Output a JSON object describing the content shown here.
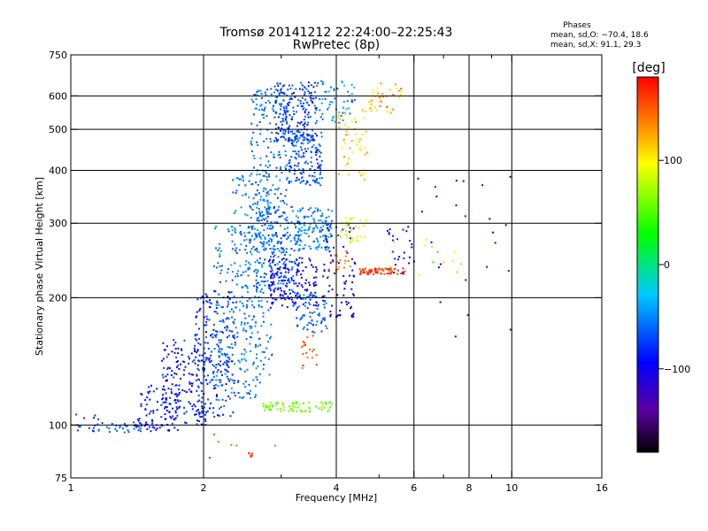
{
  "chart_data": {
    "type": "scatter",
    "title": "Tromsø 20141212 22:24:00–22:25:43",
    "subtitle": "RwPretec (8p)",
    "xlabel": "Frequency [MHz]",
    "ylabel": "Stationary phase Virtual Height [km]",
    "x_scale": "log",
    "y_scale": "log",
    "xlim": [
      1,
      16
    ],
    "ylim": [
      75,
      750
    ],
    "x_ticks": [
      1,
      2,
      4,
      6,
      8,
      10,
      16
    ],
    "x_tick_labels": [
      "1",
      "2",
      "4",
      "6",
      "8",
      "10",
      "16"
    ],
    "x_minor_ticks": [
      3,
      5,
      7,
      9
    ],
    "x_grid": [
      2,
      4,
      6,
      8,
      10
    ],
    "y_ticks": [
      75,
      100,
      200,
      300,
      400,
      500,
      600,
      750
    ],
    "y_tick_labels": [
      "75",
      "100",
      "200",
      "300",
      "400",
      "500",
      "600",
      "750"
    ],
    "y_grid": [
      100,
      200,
      300,
      400,
      500,
      600
    ],
    "grid": true,
    "phases_header": "Phases",
    "phase_stats": [
      "mean, sd,O: −70.4, 18.6",
      "mean, sd,X:  91.1, 29.3"
    ],
    "colorbar": {
      "label": "[deg]",
      "range": [
        -180,
        180
      ],
      "ticks": [
        100,
        0,
        -100
      ],
      "tick_labels": [
        "100",
        "0",
        "−100"
      ],
      "colormap": "rainbow"
    },
    "series": [
      {
        "clusters": [
          {
            "x": [
              1.0,
              1.15
            ],
            "y": [
              95,
              108
            ],
            "phase": [
              -90,
              -70
            ],
            "n": 15
          },
          {
            "x": [
              1.15,
              1.45
            ],
            "y": [
              96,
              102
            ],
            "phase": [
              -75,
              -55
            ],
            "n": 30
          },
          {
            "x": [
              1.4,
              1.75
            ],
            "y": [
              97,
              125
            ],
            "phase": [
              -100,
              -75
            ],
            "n": 90
          },
          {
            "x": [
              1.6,
              2.05
            ],
            "y": [
              100,
              160
            ],
            "phase": [
              -105,
              -70
            ],
            "n": 170
          },
          {
            "x": [
              1.9,
              2.35
            ],
            "y": [
              105,
              210
            ],
            "phase": [
              -100,
              -60
            ],
            "n": 190
          },
          {
            "x": [
              2.1,
              2.7
            ],
            "y": [
              115,
              300
            ],
            "phase": [
              -75,
              -40
            ],
            "n": 230
          },
          {
            "x": [
              2.3,
              2.85
            ],
            "y": [
              130,
              400
            ],
            "phase": [
              -70,
              -40
            ],
            "n": 160
          },
          {
            "x": [
              2.55,
              3.1
            ],
            "y": [
              250,
              640
            ],
            "phase": [
              -75,
              -45
            ],
            "n": 240
          },
          {
            "x": [
              2.6,
              3.3
            ],
            "y": [
              200,
              330
            ],
            "phase": [
              -80,
              -45
            ],
            "n": 150
          },
          {
            "x": [
              2.9,
              3.6
            ],
            "y": [
              470,
              650
            ],
            "phase": [
              -95,
              -55
            ],
            "n": 190
          },
          {
            "x": [
              3.1,
              3.7
            ],
            "y": [
              370,
              500
            ],
            "phase": [
              -90,
              -50
            ],
            "n": 150
          },
          {
            "x": [
              3.2,
              3.9
            ],
            "y": [
              260,
              330
            ],
            "phase": [
              -70,
              -35
            ],
            "n": 130
          },
          {
            "x": [
              2.8,
              3.6
            ],
            "y": [
              190,
              250
            ],
            "phase": [
              -115,
              -85
            ],
            "n": 150
          },
          {
            "x": [
              3.2,
              3.8
            ],
            "y": [
              165,
              205
            ],
            "phase": [
              -80,
              -50
            ],
            "n": 70
          },
          {
            "x": [
              3.7,
              4.4
            ],
            "y": [
              180,
              300
            ],
            "phase": [
              -125,
              -90
            ],
            "n": 80
          },
          {
            "x": [
              3.6,
              4.4
            ],
            "y": [
              520,
              660
            ],
            "phase": [
              -70,
              -30
            ],
            "n": 55
          },
          {
            "x": [
              4.0,
              4.7
            ],
            "y": [
              380,
              560
            ],
            "phase": [
              80,
              140
            ],
            "n": 50
          },
          {
            "x": [
              4.7,
              5.6
            ],
            "y": [
              550,
              660
            ],
            "phase": [
              90,
              150
            ],
            "n": 40
          },
          {
            "x": [
              4.05,
              4.7
            ],
            "y": [
              270,
              315
            ],
            "phase": [
              70,
              110
            ],
            "n": 35
          },
          {
            "x": [
              4.5,
              5.7
            ],
            "y": [
              228,
              236
            ],
            "phase": [
              150,
              175
            ],
            "n": 70
          },
          {
            "x": [
              3.8,
              4.3
            ],
            "y": [
              224,
              260
            ],
            "phase": [
              120,
              150
            ],
            "n": 20
          },
          {
            "x": [
              2.7,
              3.9
            ],
            "y": [
              108,
              114
            ],
            "phase": [
              40,
              80
            ],
            "n": 70
          },
          {
            "x": [
              3.3,
              3.6
            ],
            "y": [
              135,
              165
            ],
            "phase": [
              140,
              170
            ],
            "n": 18
          },
          {
            "x": [
              5.2,
              6.0
            ],
            "y": [
              230,
              300
            ],
            "phase": [
              -110,
              -80
            ],
            "n": 25
          },
          {
            "x": [
              6.0,
              11.0
            ],
            "y": [
              160,
              400
            ],
            "phase": [
              -110,
              -80
            ],
            "n": 24
          },
          {
            "x": [
              5.0,
              8.5
            ],
            "y": [
              220,
              280
            ],
            "phase": [
              30,
              150
            ],
            "n": 14
          },
          {
            "x": [
              2.5,
              2.6
            ],
            "y": [
              83,
              87
            ],
            "phase": [
              150,
              170
            ],
            "n": 6
          },
          {
            "x": [
              1.8,
              3.5
            ],
            "y": [
              84,
              96
            ],
            "phase": [
              120,
              175
            ],
            "n": 6
          }
        ]
      }
    ]
  }
}
